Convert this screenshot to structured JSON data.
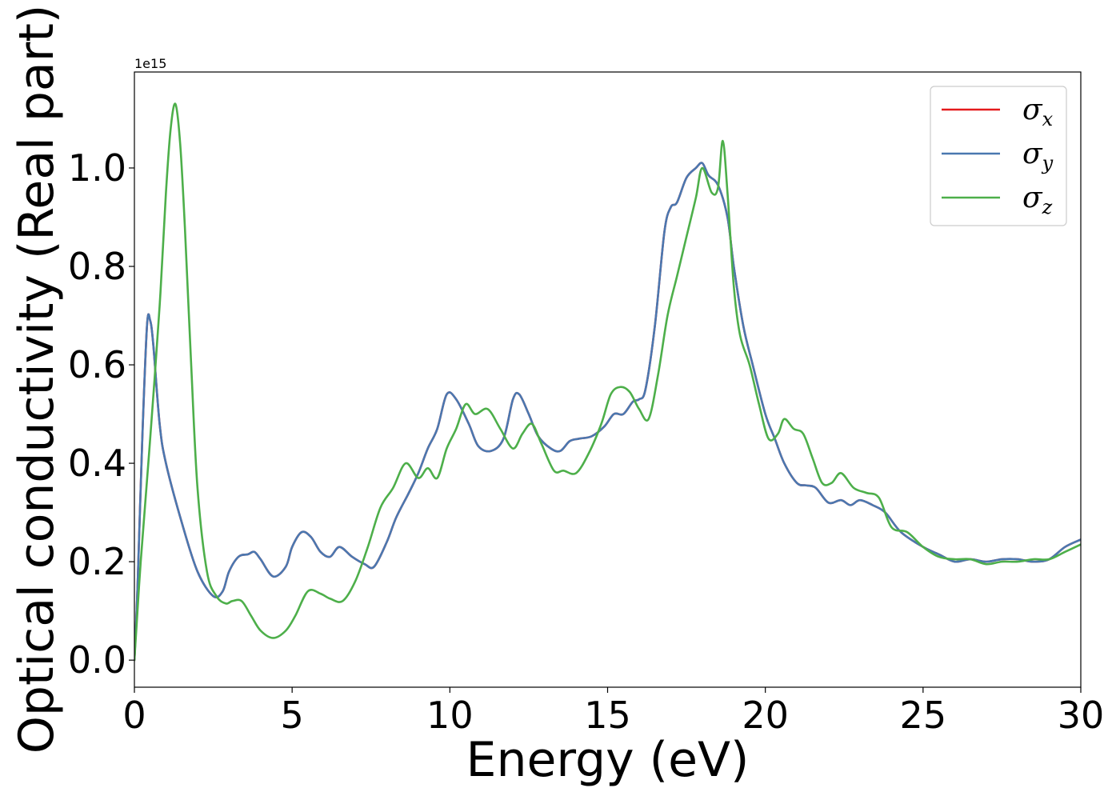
{
  "chart_data": {
    "type": "line",
    "xlabel": "Energy (eV)",
    "ylabel": "Optical conductivity (Real part)",
    "y_offset_label": "1e15",
    "xlim": [
      0,
      30
    ],
    "ylim": [
      -0.055,
      1.195
    ],
    "x_ticks": [
      0,
      5,
      10,
      15,
      20,
      25,
      30
    ],
    "x_tick_labels": [
      "0",
      "5",
      "10",
      "15",
      "20",
      "25",
      "30"
    ],
    "y_ticks": [
      0.0,
      0.2,
      0.4,
      0.6,
      0.8,
      1.0
    ],
    "y_tick_labels": [
      "0.0",
      "0.2",
      "0.4",
      "0.6",
      "0.8",
      "1.0"
    ],
    "grid": false,
    "legend_position": "top-right",
    "series": [
      {
        "name": "σ",
        "subscript": "x",
        "color": "#e41a1c",
        "x": [
          0,
          0.1,
          0.25,
          0.4,
          0.5,
          0.6,
          0.8,
          1.0,
          1.5,
          2.0,
          2.5,
          2.8,
          3.0,
          3.3,
          3.6,
          3.8,
          4.0,
          4.4,
          4.8,
          5.0,
          5.3,
          5.6,
          5.9,
          6.2,
          6.5,
          6.9,
          7.3,
          7.6,
          8.0,
          8.3,
          8.7,
          9.0,
          9.3,
          9.6,
          9.9,
          10.2,
          10.6,
          10.9,
          11.3,
          11.7,
          12.0,
          12.2,
          12.5,
          12.8,
          13.2,
          13.5,
          13.8,
          14.1,
          14.5,
          14.9,
          15.2,
          15.5,
          15.8,
          16.0,
          16.2,
          16.5,
          16.8,
          17.0,
          17.2,
          17.5,
          17.8,
          18.0,
          18.2,
          18.5,
          18.8,
          19.0,
          19.3,
          19.6,
          20.0,
          20.3,
          20.6,
          21.0,
          21.3,
          21.6,
          22.0,
          22.4,
          22.7,
          23.0,
          23.4,
          23.8,
          24.3,
          25.0,
          25.5,
          26.0,
          26.5,
          27.0,
          27.5,
          28.0,
          28.5,
          29.0,
          29.5,
          30.0
        ],
        "y": [
          0.0,
          0.15,
          0.45,
          0.68,
          0.69,
          0.64,
          0.48,
          0.4,
          0.28,
          0.18,
          0.13,
          0.14,
          0.18,
          0.21,
          0.215,
          0.22,
          0.205,
          0.17,
          0.19,
          0.23,
          0.26,
          0.25,
          0.22,
          0.21,
          0.23,
          0.21,
          0.195,
          0.19,
          0.24,
          0.29,
          0.34,
          0.38,
          0.43,
          0.47,
          0.54,
          0.53,
          0.48,
          0.435,
          0.425,
          0.45,
          0.53,
          0.54,
          0.5,
          0.455,
          0.43,
          0.425,
          0.445,
          0.45,
          0.455,
          0.475,
          0.5,
          0.5,
          0.525,
          0.53,
          0.55,
          0.68,
          0.87,
          0.92,
          0.93,
          0.98,
          1.0,
          1.01,
          0.985,
          0.965,
          0.9,
          0.8,
          0.68,
          0.6,
          0.5,
          0.45,
          0.4,
          0.36,
          0.355,
          0.35,
          0.32,
          0.325,
          0.315,
          0.325,
          0.315,
          0.3,
          0.26,
          0.23,
          0.215,
          0.2,
          0.205,
          0.2,
          0.205,
          0.205,
          0.2,
          0.205,
          0.23,
          0.245
        ]
      },
      {
        "name": "σ",
        "subscript": "y",
        "color": "#4a78b0",
        "x": [
          0,
          0.1,
          0.25,
          0.4,
          0.5,
          0.6,
          0.8,
          1.0,
          1.5,
          2.0,
          2.5,
          2.8,
          3.0,
          3.3,
          3.6,
          3.8,
          4.0,
          4.4,
          4.8,
          5.0,
          5.3,
          5.6,
          5.9,
          6.2,
          6.5,
          6.9,
          7.3,
          7.6,
          8.0,
          8.3,
          8.7,
          9.0,
          9.3,
          9.6,
          9.9,
          10.2,
          10.6,
          10.9,
          11.3,
          11.7,
          12.0,
          12.2,
          12.5,
          12.8,
          13.2,
          13.5,
          13.8,
          14.1,
          14.5,
          14.9,
          15.2,
          15.5,
          15.8,
          16.0,
          16.2,
          16.5,
          16.8,
          17.0,
          17.2,
          17.5,
          17.8,
          18.0,
          18.2,
          18.5,
          18.8,
          19.0,
          19.3,
          19.6,
          20.0,
          20.3,
          20.6,
          21.0,
          21.3,
          21.6,
          22.0,
          22.4,
          22.7,
          23.0,
          23.4,
          23.8,
          24.3,
          25.0,
          25.5,
          26.0,
          26.5,
          27.0,
          27.5,
          28.0,
          28.5,
          29.0,
          29.5,
          30.0
        ],
        "y": [
          0.0,
          0.15,
          0.45,
          0.68,
          0.69,
          0.64,
          0.48,
          0.4,
          0.28,
          0.18,
          0.13,
          0.14,
          0.18,
          0.21,
          0.215,
          0.22,
          0.205,
          0.17,
          0.19,
          0.23,
          0.26,
          0.25,
          0.22,
          0.21,
          0.23,
          0.21,
          0.195,
          0.19,
          0.24,
          0.29,
          0.34,
          0.38,
          0.43,
          0.47,
          0.54,
          0.53,
          0.48,
          0.435,
          0.425,
          0.45,
          0.53,
          0.54,
          0.5,
          0.455,
          0.43,
          0.425,
          0.445,
          0.45,
          0.455,
          0.475,
          0.5,
          0.5,
          0.525,
          0.53,
          0.55,
          0.68,
          0.87,
          0.92,
          0.93,
          0.98,
          1.0,
          1.01,
          0.985,
          0.965,
          0.9,
          0.8,
          0.68,
          0.6,
          0.5,
          0.45,
          0.4,
          0.36,
          0.355,
          0.35,
          0.32,
          0.325,
          0.315,
          0.325,
          0.315,
          0.3,
          0.26,
          0.23,
          0.215,
          0.2,
          0.205,
          0.2,
          0.205,
          0.205,
          0.2,
          0.205,
          0.23,
          0.245
        ]
      },
      {
        "name": "σ",
        "subscript": "z",
        "color": "#4daf4a",
        "x": [
          0,
          0.2,
          0.5,
          0.8,
          1.0,
          1.15,
          1.3,
          1.45,
          1.6,
          1.8,
          2.0,
          2.3,
          2.6,
          2.9,
          3.1,
          3.4,
          3.7,
          4.0,
          4.4,
          4.8,
          5.1,
          5.5,
          5.9,
          6.2,
          6.6,
          7.0,
          7.4,
          7.8,
          8.2,
          8.6,
          9.0,
          9.3,
          9.6,
          9.9,
          10.2,
          10.5,
          10.8,
          11.2,
          11.6,
          12.0,
          12.3,
          12.6,
          12.9,
          13.3,
          13.6,
          14.0,
          14.4,
          14.8,
          15.1,
          15.4,
          15.7,
          16.0,
          16.3,
          16.6,
          16.9,
          17.2,
          17.5,
          17.8,
          18.0,
          18.3,
          18.5,
          18.65,
          18.8,
          19.0,
          19.2,
          19.5,
          19.8,
          20.1,
          20.4,
          20.6,
          20.9,
          21.2,
          21.5,
          21.8,
          22.1,
          22.4,
          22.8,
          23.2,
          23.6,
          24.0,
          24.5,
          25.0,
          25.5,
          26.0,
          26.5,
          27.0,
          27.5,
          28.0,
          28.5,
          29.0,
          29.5,
          30.0
        ],
        "y": [
          0.0,
          0.2,
          0.45,
          0.72,
          0.95,
          1.08,
          1.13,
          1.05,
          0.88,
          0.6,
          0.35,
          0.18,
          0.13,
          0.115,
          0.12,
          0.12,
          0.09,
          0.06,
          0.045,
          0.06,
          0.09,
          0.14,
          0.135,
          0.125,
          0.12,
          0.16,
          0.23,
          0.31,
          0.35,
          0.4,
          0.37,
          0.39,
          0.37,
          0.43,
          0.47,
          0.52,
          0.5,
          0.51,
          0.47,
          0.43,
          0.46,
          0.48,
          0.44,
          0.385,
          0.385,
          0.38,
          0.42,
          0.48,
          0.54,
          0.555,
          0.545,
          0.51,
          0.49,
          0.58,
          0.7,
          0.78,
          0.86,
          0.94,
          1.0,
          0.95,
          0.96,
          1.055,
          0.95,
          0.76,
          0.66,
          0.6,
          0.52,
          0.45,
          0.46,
          0.49,
          0.47,
          0.46,
          0.41,
          0.36,
          0.36,
          0.38,
          0.35,
          0.34,
          0.33,
          0.27,
          0.26,
          0.23,
          0.21,
          0.205,
          0.205,
          0.195,
          0.2,
          0.2,
          0.205,
          0.205,
          0.22,
          0.235
        ]
      }
    ]
  }
}
